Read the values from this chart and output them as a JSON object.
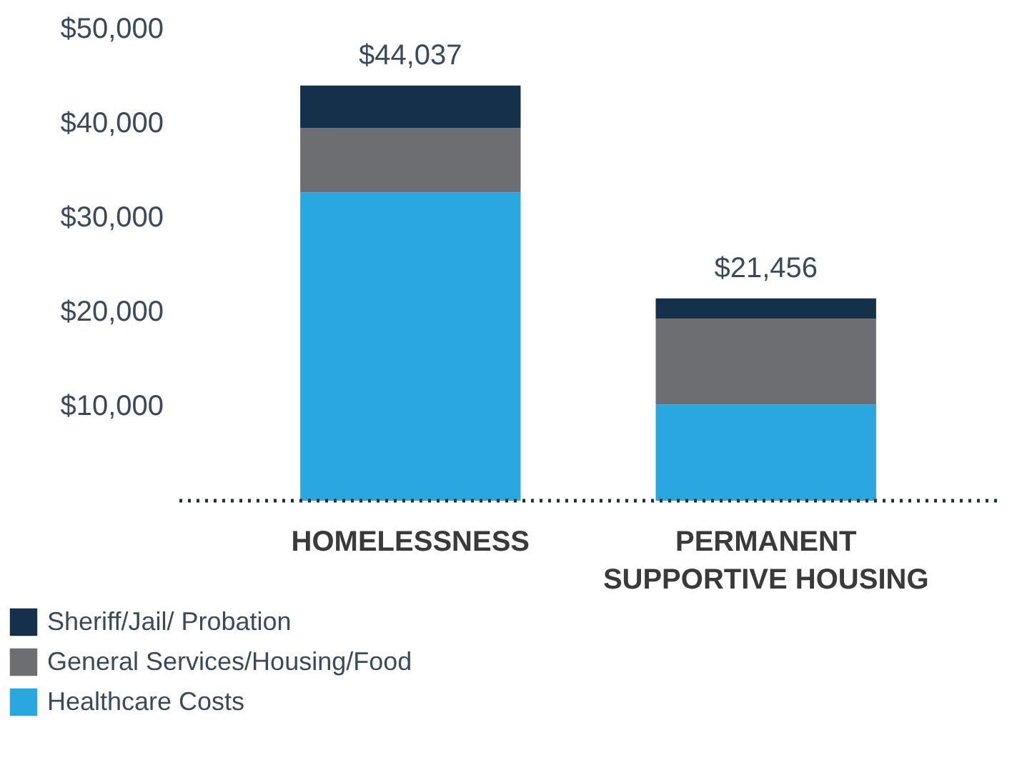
{
  "chart_data": {
    "type": "bar",
    "stacked": true,
    "categories": [
      "HOMELESSNESS",
      "PERMANENT SUPPORTIVE HOUSING"
    ],
    "series": [
      {
        "name": "Healthcare Costs",
        "color": "#29a8e0",
        "values": [
          32700,
          10200
        ]
      },
      {
        "name": "General Services/Housing/Food",
        "color": "#6d6e71",
        "values": [
          6800,
          9100
        ]
      },
      {
        "name": "Sheriff/Jail/ Probation",
        "color": "#14304a",
        "values": [
          4537,
          2156
        ]
      }
    ],
    "totals": [
      "$44,037",
      "$21,456"
    ],
    "ylim": [
      0,
      50000
    ],
    "yticks": [
      {
        "value": 10000,
        "label": "$10,000"
      },
      {
        "value": 20000,
        "label": "$20,000"
      },
      {
        "value": 30000,
        "label": "$30,000"
      },
      {
        "value": 40000,
        "label": "$40,000"
      },
      {
        "value": 50000,
        "label": "$50,000"
      }
    ],
    "grid": false,
    "legend": "bottom"
  }
}
